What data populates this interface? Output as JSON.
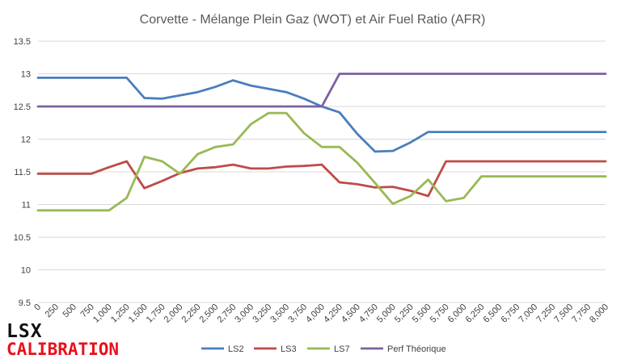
{
  "chart_data": {
    "type": "line",
    "title": "Corvette - Mélange Plein Gaz (WOT) et Air Fuel Ratio (AFR)",
    "xlabel": "",
    "ylabel": "",
    "ylim": [
      9.5,
      13.5
    ],
    "yticks": [
      "9.5",
      "10",
      "10.5",
      "11",
      "11.5",
      "12",
      "12.5",
      "13",
      "13.5"
    ],
    "grid": "horizontal",
    "legend_position": "bottom",
    "categories": [
      "0",
      "250",
      "500",
      "750",
      "1,000",
      "1,250",
      "1,500",
      "1,750",
      "2,000",
      "2,250",
      "2,500",
      "2,750",
      "3,000",
      "3,250",
      "3,500",
      "3,750",
      "4,000",
      "4,250",
      "4,500",
      "4,750",
      "5,000",
      "5,250",
      "5,500",
      "5,750",
      "6,000",
      "6,250",
      "6,500",
      "6,750",
      "7,000",
      "7,250",
      "7,500",
      "7,750",
      "8,000"
    ],
    "series": [
      {
        "name": "LS2",
        "color": "#4a7ebb",
        "values": [
          12.94,
          12.94,
          12.94,
          12.94,
          12.94,
          12.94,
          12.63,
          12.62,
          12.67,
          12.72,
          12.8,
          12.9,
          12.82,
          12.77,
          12.72,
          12.62,
          12.5,
          12.41,
          12.08,
          11.81,
          11.82,
          11.95,
          12.11,
          12.11,
          12.11,
          12.11,
          12.11,
          12.11,
          12.11,
          12.11,
          12.11,
          12.11,
          12.11
        ]
      },
      {
        "name": "LS3",
        "color": "#be4b48",
        "values": [
          11.47,
          11.47,
          11.47,
          11.47,
          11.57,
          11.66,
          11.25,
          11.36,
          11.48,
          11.55,
          11.57,
          11.61,
          11.55,
          11.55,
          11.58,
          11.59,
          11.61,
          11.34,
          11.31,
          11.26,
          11.27,
          11.21,
          11.13,
          11.66,
          11.66,
          11.66,
          11.66,
          11.66,
          11.66,
          11.66,
          11.66,
          11.66,
          11.66
        ]
      },
      {
        "name": "LS7",
        "color": "#98b954",
        "values": [
          10.91,
          10.91,
          10.91,
          10.91,
          10.91,
          11.1,
          11.73,
          11.66,
          11.47,
          11.77,
          11.88,
          11.92,
          12.23,
          12.4,
          12.4,
          12.09,
          11.88,
          11.88,
          11.64,
          11.33,
          11.01,
          11.13,
          11.38,
          11.05,
          11.1,
          11.43,
          11.43,
          11.43,
          11.43,
          11.43,
          11.43,
          11.43,
          11.43
        ]
      },
      {
        "name": "Perf Théorique",
        "color": "#7d60a0",
        "values": [
          12.5,
          12.5,
          12.5,
          12.5,
          12.5,
          12.5,
          12.5,
          12.5,
          12.5,
          12.5,
          12.5,
          12.5,
          12.5,
          12.5,
          12.5,
          12.5,
          12.5,
          13.0,
          13.0,
          13.0,
          13.0,
          13.0,
          13.0,
          13.0,
          13.0,
          13.0,
          13.0,
          13.0,
          13.0,
          13.0,
          13.0,
          13.0,
          13.0
        ]
      }
    ]
  },
  "logo": {
    "line1": "LSX",
    "line2": "CALIBRATION",
    "line1_color": "#111111",
    "line2_color": "#e8101a"
  }
}
